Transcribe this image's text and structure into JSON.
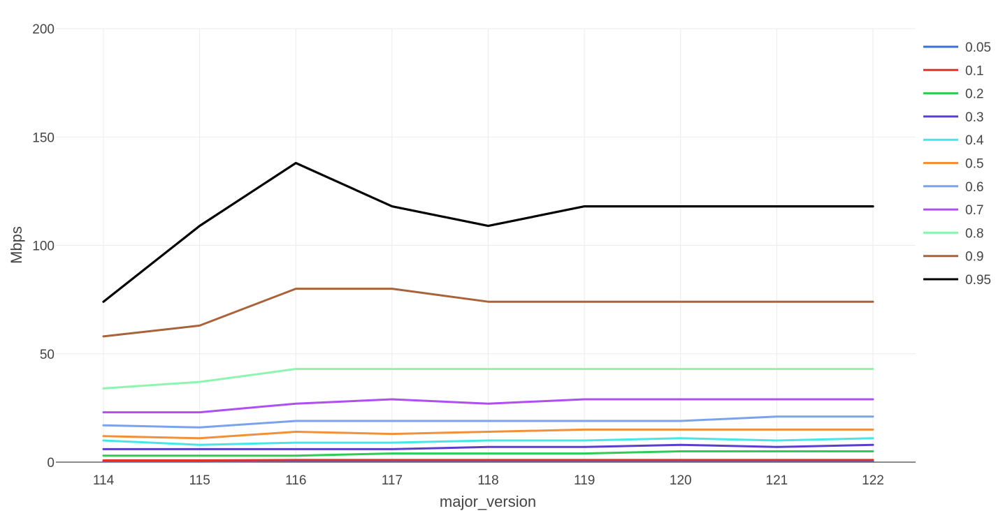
{
  "chart_data": {
    "type": "line",
    "xlabel": "major_version",
    "ylabel": "Mbps",
    "ylim": [
      0,
      200
    ],
    "yticks": [
      0,
      50,
      100,
      150,
      200
    ],
    "grid": true,
    "legend_position": "right",
    "x": [
      "114",
      "115",
      "116",
      "117",
      "118",
      "119",
      "120",
      "121",
      "122"
    ],
    "series": [
      {
        "name": "0.05",
        "color": "#3b6fd8",
        "values": [
          0.3,
          0.3,
          0.5,
          0.5,
          0.5,
          0.5,
          0.5,
          0.5,
          0.5
        ]
      },
      {
        "name": "0.1",
        "color": "#e0302b",
        "values": [
          0.8,
          0.8,
          1,
          1,
          1,
          1,
          1,
          1,
          1
        ]
      },
      {
        "name": "0.2",
        "color": "#2ecc55",
        "values": [
          3,
          3,
          3,
          4,
          4,
          4,
          5,
          5,
          5
        ]
      },
      {
        "name": "0.3",
        "color": "#5a3fcf",
        "values": [
          6,
          6,
          6,
          6,
          7,
          7,
          8,
          7,
          8
        ]
      },
      {
        "name": "0.4",
        "color": "#45e6e6",
        "values": [
          10,
          8,
          9,
          9,
          10,
          10,
          11,
          10,
          11
        ]
      },
      {
        "name": "0.5",
        "color": "#f0913a",
        "values": [
          12,
          11,
          14,
          13,
          14,
          15,
          15,
          15,
          15
        ]
      },
      {
        "name": "0.6",
        "color": "#7aa3ec",
        "values": [
          17,
          16,
          19,
          19,
          19,
          19,
          19,
          21,
          21
        ]
      },
      {
        "name": "0.7",
        "color": "#b04ef0",
        "values": [
          23,
          23,
          27,
          29,
          27,
          29,
          29,
          29,
          29
        ]
      },
      {
        "name": "0.8",
        "color": "#8ef5b0",
        "values": [
          34,
          37,
          43,
          43,
          43,
          43,
          43,
          43,
          43
        ]
      },
      {
        "name": "0.9",
        "color": "#a8633a",
        "values": [
          58,
          63,
          80,
          80,
          74,
          74,
          74,
          74,
          74
        ]
      },
      {
        "name": "0.95",
        "color": "#000000",
        "values": [
          74,
          109,
          138,
          118,
          109,
          118,
          118,
          118,
          118
        ]
      }
    ]
  }
}
